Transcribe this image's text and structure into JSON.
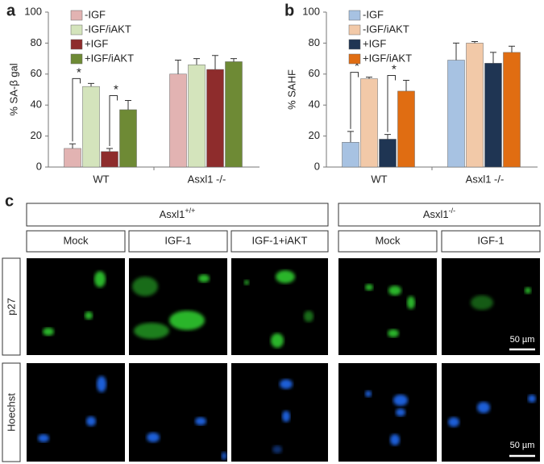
{
  "chart_data": [
    {
      "type": "bar",
      "panel_label": "a",
      "ylabel": "% SA-β gal",
      "categories": [
        "WT",
        "Asxl1 -/-"
      ],
      "series": [
        {
          "name": "-IGF",
          "color": "#e2b3b2",
          "values": [
            12,
            60
          ],
          "errors": [
            3,
            9
          ]
        },
        {
          "name": "-IGF/iAKT",
          "color": "#d4e4bc",
          "values": [
            52,
            66
          ],
          "errors": [
            2,
            4
          ]
        },
        {
          "name": "+IGF",
          "color": "#8e2c2c",
          "values": [
            10,
            63
          ],
          "errors": [
            2,
            9
          ]
        },
        {
          "name": "+IGF/iAKT",
          "color": "#6e8a35",
          "values": [
            37,
            68
          ],
          "errors": [
            6,
            2
          ]
        }
      ],
      "annotations": [
        "*",
        "*"
      ],
      "ylim": [
        0,
        100
      ],
      "yticks": [
        0,
        20,
        40,
        60,
        80,
        100
      ],
      "legend": "upper left"
    },
    {
      "type": "bar",
      "panel_label": "b",
      "ylabel": "% SAHF",
      "categories": [
        "WT",
        "Asxl1 -/-"
      ],
      "series": [
        {
          "name": "-IGF",
          "color": "#a7c2e2",
          "values": [
            16,
            69
          ],
          "errors": [
            7,
            11
          ]
        },
        {
          "name": "-IGF/iAKT",
          "color": "#f2c9a8",
          "values": [
            57,
            80
          ],
          "errors": [
            1,
            1
          ]
        },
        {
          "name": "+IGF",
          "color": "#1f3553",
          "values": [
            18,
            67
          ],
          "errors": [
            3,
            7
          ]
        },
        {
          "name": "+IGF/iAKT",
          "color": "#e06d12",
          "values": [
            49,
            74
          ],
          "errors": [
            7,
            4
          ]
        }
      ],
      "annotations": [
        "*",
        "*"
      ],
      "ylim": [
        0,
        100
      ],
      "yticks": [
        0,
        20,
        40,
        60,
        80,
        100
      ],
      "legend": "upper left"
    }
  ],
  "panel_c": {
    "label": "c",
    "groups": [
      {
        "name": "Asxl1",
        "sup": "+/+"
      },
      {
        "name": "Asxl1",
        "sup": "-/-"
      }
    ],
    "conditions": [
      "Mock",
      "IGF-1",
      "IGF-1+iAKT",
      "Mock",
      "IGF-1"
    ],
    "rows": [
      "p27",
      "Hoechst"
    ],
    "scale_bars": [
      "50 µm",
      "50 µm"
    ]
  }
}
